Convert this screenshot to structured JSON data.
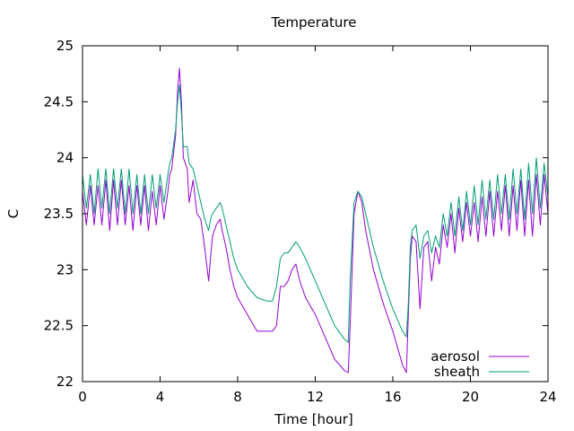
{
  "chart_data": {
    "type": "line",
    "title": "Temperature",
    "xlabel": "Time [hour]",
    "ylabel": "C",
    "xlim": [
      0,
      24
    ],
    "ylim": [
      22,
      25
    ],
    "xticks": [
      0,
      4,
      8,
      12,
      16,
      20,
      24
    ],
    "xtick_labels": [
      "0",
      "4",
      "8",
      "12",
      "16",
      "20",
      "24"
    ],
    "yticks": [
      22,
      22.5,
      23,
      23.5,
      24,
      24.5,
      25
    ],
    "ytick_labels": [
      "22",
      "22.5",
      "23",
      "23.5",
      "24",
      "24.5",
      "25"
    ],
    "grid": false,
    "legend_position": "bottom-right",
    "series": [
      {
        "name": "aerosol",
        "color": "#9400d3",
        "x": [
          0,
          0.2,
          0.4,
          0.6,
          0.8,
          1.0,
          1.2,
          1.4,
          1.6,
          1.8,
          2.0,
          2.2,
          2.4,
          2.6,
          2.8,
          3.0,
          3.2,
          3.4,
          3.6,
          3.8,
          4.0,
          4.2,
          4.4,
          4.5,
          4.6,
          4.8,
          4.9,
          5.0,
          5.1,
          5.2,
          5.4,
          5.5,
          5.7,
          5.9,
          6.1,
          6.3,
          6.5,
          6.6,
          6.7,
          6.9,
          7.1,
          7.2,
          7.4,
          7.6,
          7.8,
          8.0,
          8.5,
          9.0,
          9.5,
          9.8,
          10.0,
          10.2,
          10.4,
          10.6,
          10.8,
          11.0,
          11.2,
          11.5,
          12.0,
          12.5,
          13.0,
          13.5,
          13.7,
          13.8,
          14.0,
          14.2,
          14.4,
          14.6,
          15.0,
          15.5,
          16.0,
          16.5,
          16.7,
          16.8,
          16.9,
          17.0,
          17.2,
          17.4,
          17.6,
          17.8,
          18.0,
          18.2,
          18.4,
          18.6,
          18.8,
          19.0,
          19.2,
          19.4,
          19.6,
          19.8,
          20.0,
          20.2,
          20.4,
          20.6,
          20.8,
          21.0,
          21.2,
          21.4,
          21.6,
          21.8,
          22.0,
          22.2,
          22.4,
          22.6,
          22.8,
          23.0,
          23.2,
          23.4,
          23.6,
          23.8,
          24.0
        ],
        "y": [
          23.7,
          23.4,
          23.75,
          23.4,
          23.75,
          23.4,
          23.8,
          23.35,
          23.8,
          23.4,
          23.8,
          23.4,
          23.75,
          23.35,
          23.75,
          23.4,
          23.75,
          23.35,
          23.7,
          23.4,
          23.75,
          23.45,
          23.7,
          23.85,
          23.9,
          24.2,
          24.6,
          24.8,
          24.5,
          24.0,
          23.9,
          23.6,
          23.8,
          23.5,
          23.45,
          23.2,
          22.9,
          23.1,
          23.3,
          23.4,
          23.45,
          23.35,
          23.2,
          23.0,
          22.85,
          22.75,
          22.6,
          22.45,
          22.45,
          22.45,
          22.5,
          22.85,
          22.85,
          22.9,
          23.0,
          23.05,
          22.9,
          22.75,
          22.6,
          22.4,
          22.2,
          22.1,
          22.08,
          22.5,
          23.5,
          23.7,
          23.6,
          23.35,
          23.0,
          22.7,
          22.45,
          22.15,
          22.08,
          22.6,
          23.1,
          23.3,
          23.25,
          22.65,
          23.2,
          23.25,
          22.9,
          23.2,
          23.05,
          23.4,
          23.2,
          23.5,
          23.15,
          23.55,
          23.25,
          23.6,
          23.3,
          23.6,
          23.25,
          23.65,
          23.3,
          23.7,
          23.3,
          23.7,
          23.35,
          23.75,
          23.3,
          23.75,
          23.35,
          23.8,
          23.3,
          23.8,
          23.3,
          23.85,
          23.4,
          23.85,
          23.5
        ]
      },
      {
        "name": "sheath",
        "color": "#009e73",
        "x": [
          0,
          0.2,
          0.4,
          0.6,
          0.8,
          1.0,
          1.2,
          1.4,
          1.6,
          1.8,
          2.0,
          2.2,
          2.4,
          2.6,
          2.8,
          3.0,
          3.2,
          3.4,
          3.6,
          3.8,
          4.0,
          4.2,
          4.4,
          4.5,
          4.6,
          4.8,
          4.9,
          5.0,
          5.1,
          5.2,
          5.4,
          5.5,
          5.7,
          5.9,
          6.1,
          6.3,
          6.5,
          6.6,
          6.7,
          6.9,
          7.1,
          7.2,
          7.4,
          7.6,
          7.8,
          8.0,
          8.5,
          9.0,
          9.5,
          9.8,
          10.0,
          10.2,
          10.4,
          10.6,
          10.8,
          11.0,
          11.2,
          11.5,
          12.0,
          12.5,
          13.0,
          13.5,
          13.7,
          13.8,
          14.0,
          14.2,
          14.4,
          14.6,
          15.0,
          15.5,
          16.0,
          16.5,
          16.7,
          16.8,
          16.9,
          17.0,
          17.2,
          17.4,
          17.6,
          17.8,
          18.0,
          18.2,
          18.4,
          18.6,
          18.8,
          19.0,
          19.2,
          19.4,
          19.6,
          19.8,
          20.0,
          20.2,
          20.4,
          20.6,
          20.8,
          21.0,
          21.2,
          21.4,
          21.6,
          21.8,
          22.0,
          22.2,
          22.4,
          22.6,
          22.8,
          23.0,
          23.2,
          23.4,
          23.6,
          23.8,
          24.0
        ],
        "y": [
          23.85,
          23.55,
          23.85,
          23.5,
          23.9,
          23.55,
          23.9,
          23.5,
          23.9,
          23.55,
          23.9,
          23.5,
          23.9,
          23.5,
          23.85,
          23.5,
          23.85,
          23.5,
          23.85,
          23.55,
          23.85,
          23.6,
          23.85,
          23.95,
          24.0,
          24.25,
          24.5,
          24.65,
          24.4,
          24.1,
          24.1,
          23.95,
          23.9,
          23.75,
          23.6,
          23.45,
          23.35,
          23.45,
          23.5,
          23.55,
          23.6,
          23.55,
          23.4,
          23.25,
          23.1,
          23.0,
          22.85,
          22.75,
          22.72,
          22.72,
          22.85,
          23.1,
          23.15,
          23.15,
          23.2,
          23.25,
          23.2,
          23.1,
          22.9,
          22.7,
          22.5,
          22.38,
          22.35,
          22.9,
          23.6,
          23.7,
          23.65,
          23.5,
          23.2,
          22.9,
          22.65,
          22.45,
          22.4,
          22.7,
          23.2,
          23.35,
          23.4,
          23.1,
          23.3,
          23.35,
          23.15,
          23.3,
          23.2,
          23.5,
          23.3,
          23.6,
          23.3,
          23.65,
          23.35,
          23.7,
          23.4,
          23.75,
          23.4,
          23.8,
          23.45,
          23.8,
          23.45,
          23.85,
          23.5,
          23.85,
          23.45,
          23.9,
          23.5,
          23.9,
          23.45,
          23.95,
          23.5,
          24.0,
          23.55,
          23.95,
          23.65
        ]
      }
    ]
  }
}
